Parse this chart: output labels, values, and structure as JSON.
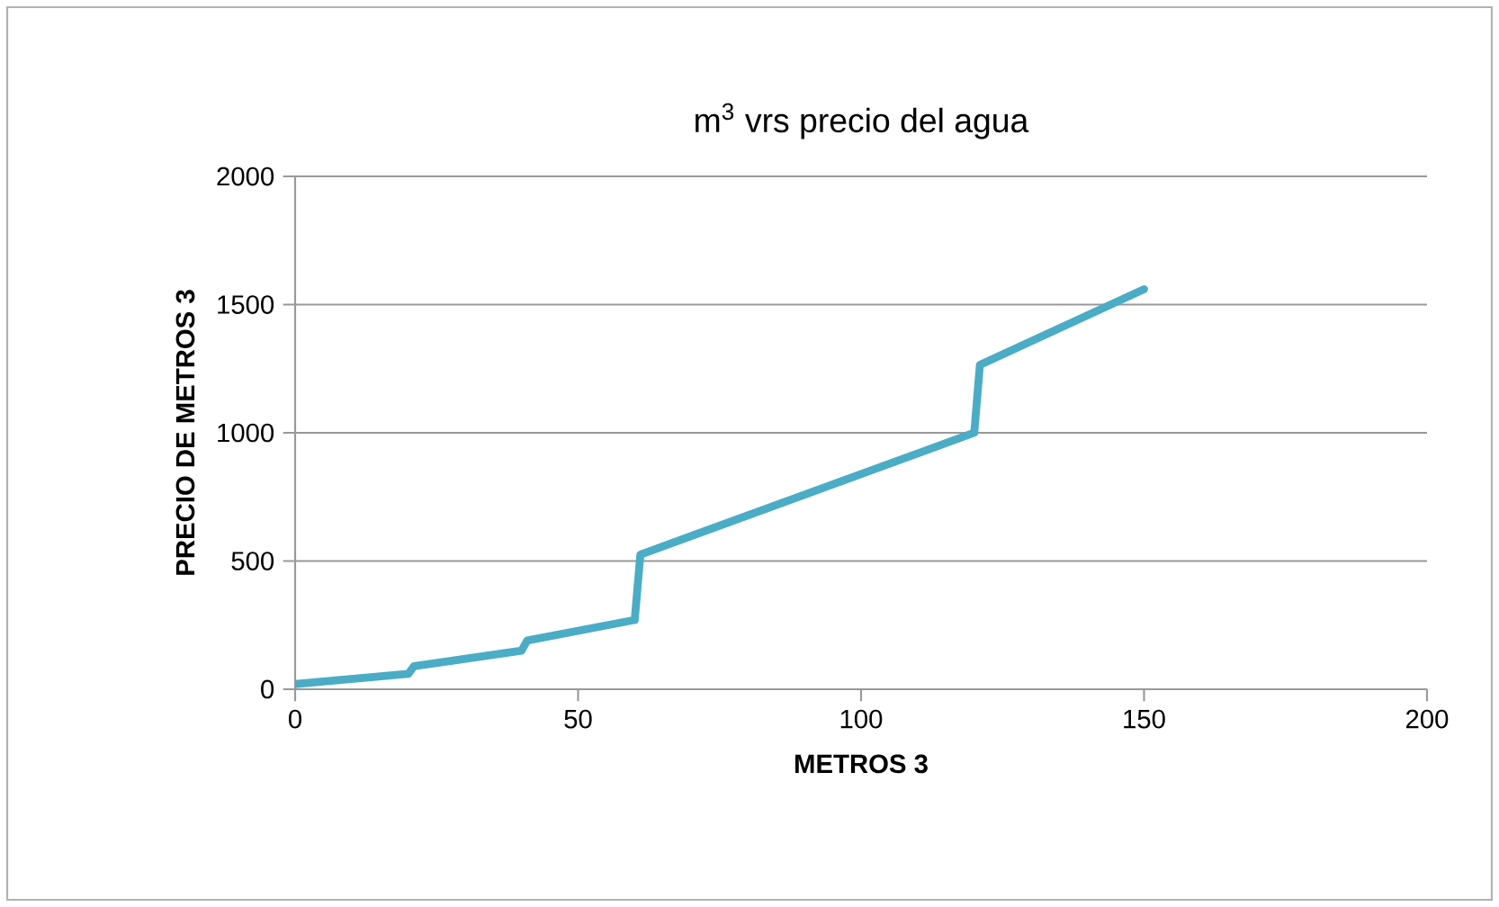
{
  "chart_data": {
    "type": "line",
    "title": "m$^{3}$ vrs precio del agua",
    "xlabel": "METROS 3",
    "ylabel": "PRECIO DE METROS 3",
    "series": [
      {
        "color": "#4bacc6",
        "x": [
          0,
          20,
          21,
          40,
          41,
          60,
          61,
          120,
          121,
          150
        ],
        "values": [
          20,
          60,
          90,
          150,
          190,
          270,
          525,
          1000,
          1265,
          1560
        ]
      }
    ],
    "xlim": [
      0,
      200
    ],
    "xticks": [
      0,
      50,
      100,
      150,
      200
    ],
    "ylim": [
      0,
      2000
    ],
    "yticks": [
      0,
      500,
      1000,
      1500,
      2000
    ],
    "grid": "y",
    "marker": "none",
    "line_style": "solid"
  }
}
